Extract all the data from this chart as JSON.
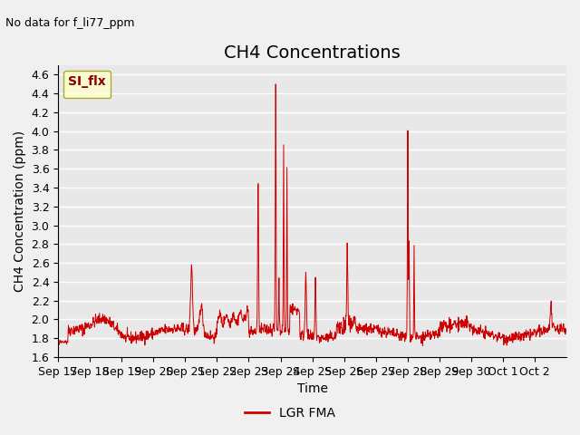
{
  "title": "CH4 Concentrations",
  "top_left_text": "No data for f_li77_ppm",
  "ylabel": "CH4 Concentration (ppm)",
  "xlabel": "Time",
  "ylim": [
    1.6,
    4.7
  ],
  "line_color": "#cc0000",
  "legend_label": "LGR FMA",
  "legend_box_color": "#ffffcc",
  "legend_box_edge": "#999900",
  "legend_text": "SI_flx",
  "x_tick_labels": [
    "Sep 17",
    "Sep 18",
    "Sep 19",
    "Sep 20",
    "Sep 21",
    "Sep 22",
    "Sep 23",
    "Sep 24",
    "Sep 25",
    "Sep 26",
    "Sep 27",
    "Sep 28",
    "Sep 29",
    "Sep 30",
    "Oct 1",
    "Oct 2"
  ],
  "background_color": "#e8e8e8",
  "grid_color": "#ffffff",
  "title_fontsize": 14,
  "axis_fontsize": 10,
  "tick_fontsize": 9
}
